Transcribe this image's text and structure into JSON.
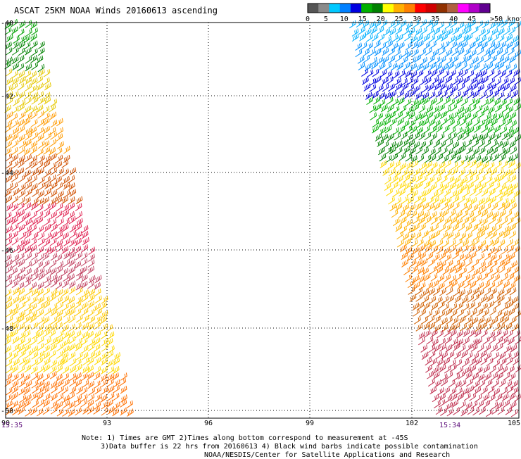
{
  "title": "ASCAT 25KM NOAA Winds 20160613 ascending",
  "colorbar": {
    "labels": [
      "0",
      "5",
      "10",
      "15",
      "20",
      "25",
      "30",
      "35",
      "40",
      "45",
      ">50 knots"
    ],
    "colors": [
      "#555555",
      "#8a8a8a",
      "#00c8ff",
      "#0080ff",
      "#0000e0",
      "#00b000",
      "#008000",
      "#ffff00",
      "#ffb000",
      "#ff8000",
      "#ff0000",
      "#d00000",
      "#903000",
      "#b06040",
      "#ff00ff",
      "#b000c8",
      "#600090"
    ]
  },
  "map": {
    "lon_ticks": [
      "90",
      "93",
      "96",
      "99",
      "102",
      "105"
    ],
    "lat_ticks": [
      "-40",
      "-42",
      "-44",
      "-46",
      "-48",
      "-50"
    ]
  },
  "times": {
    "left": "15:35",
    "right": "15:34"
  },
  "notes": {
    "line1": "Note: 1) Times are GMT 2)Times along bottom correspond to measurement at -45S",
    "line2": "3)Data buffer is 22 hrs from 20160613 4) Black wind barbs indicate possible contamination",
    "line3": "NOAA/NESDIS/Center for Satellite Applications and Research"
  },
  "colors": {
    "grid": "#000000",
    "time_label": "#5a0a78",
    "barb_left": [
      "#00a000",
      "#008000",
      "#e6c800",
      "#ff9a00",
      "#ff7000",
      "#d05000",
      "#c04060",
      "#e02050",
      "#ffc800",
      "#ffd800"
    ],
    "barb_right": [
      "#0090ff",
      "#00b0ff",
      "#0000e0",
      "#0030c0",
      "#00b000",
      "#008000",
      "#ffd800",
      "#ffb000",
      "#ff8000",
      "#d06000",
      "#c03050"
    ]
  }
}
